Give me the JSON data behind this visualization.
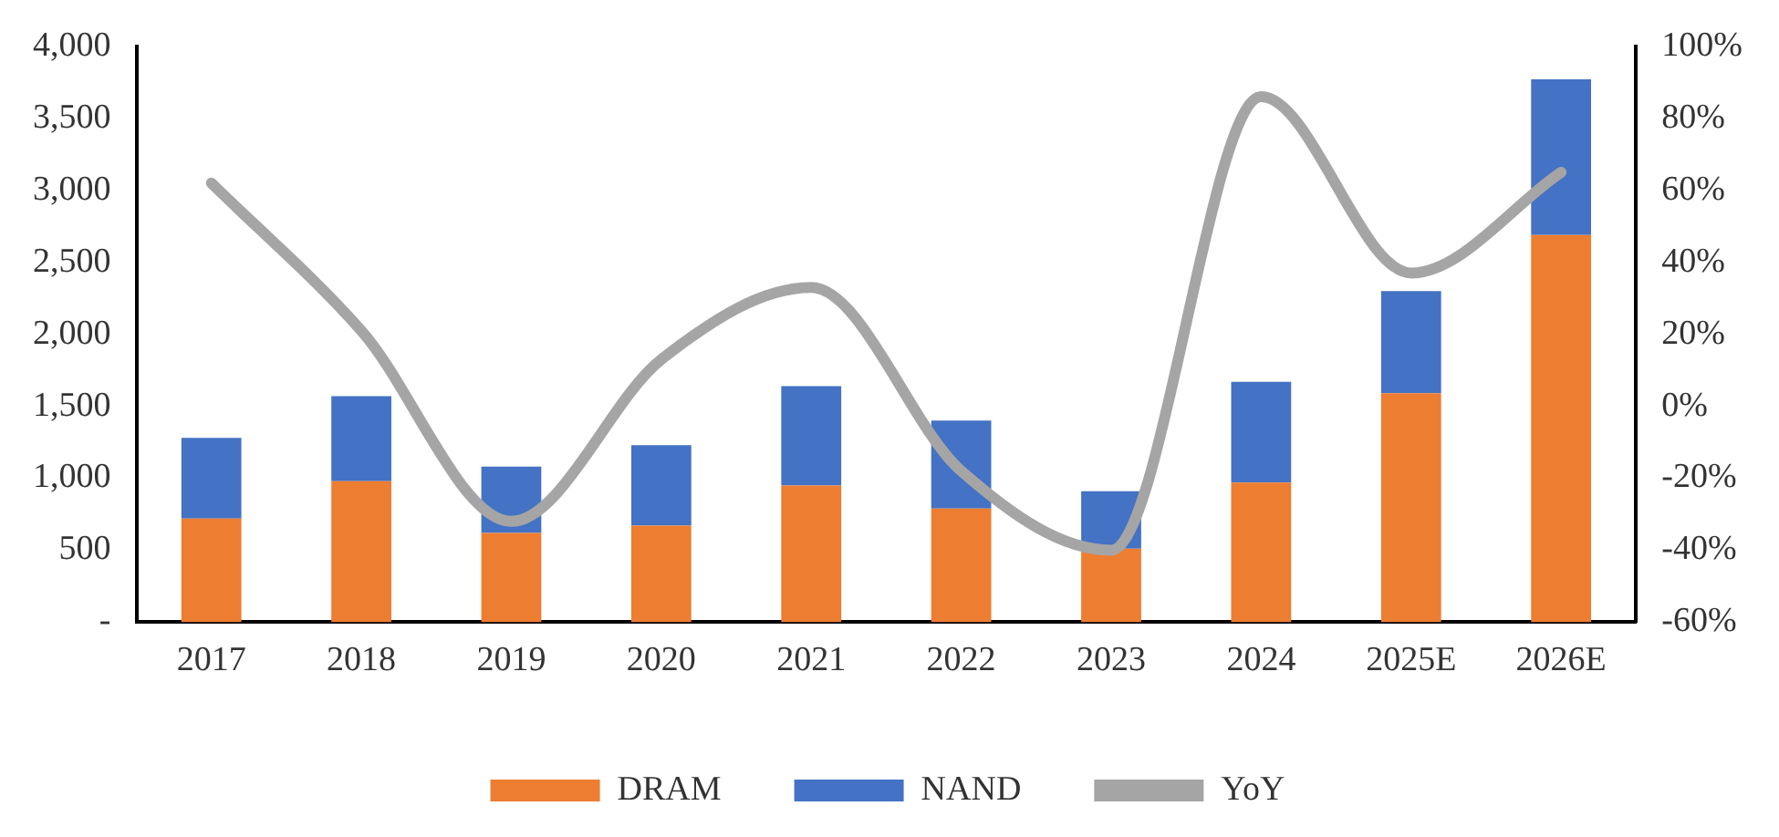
{
  "chart_data": {
    "type": "bar",
    "stacked": true,
    "categories": [
      "2017",
      "2018",
      "2019",
      "2020",
      "2021",
      "2022",
      "2023",
      "2024",
      "2025E",
      "2026E"
    ],
    "series": [
      {
        "name": "DRAM",
        "color": "#ed7d31",
        "values": [
          720,
          980,
          620,
          670,
          950,
          790,
          510,
          970,
          1590,
          2690
        ]
      },
      {
        "name": "NAND",
        "color": "#4472c4",
        "values": [
          560,
          590,
          460,
          560,
          690,
          610,
          400,
          700,
          710,
          1080
        ]
      },
      {
        "name": "YoY",
        "type": "line",
        "axis": "y2",
        "color": "#a5a5a5",
        "marker": "none",
        "values": [
          62,
          21,
          -32,
          13,
          33,
          -18,
          -40,
          86,
          37,
          65
        ]
      }
    ],
    "ylim": [
      0,
      4000
    ],
    "yticks": [
      {
        "value": 0,
        "label": "-"
      },
      {
        "value": 500,
        "label": "500"
      },
      {
        "value": 1000,
        "label": "1,000"
      },
      {
        "value": 1500,
        "label": "1,500"
      },
      {
        "value": 2000,
        "label": "2,000"
      },
      {
        "value": 2500,
        "label": "2,500"
      },
      {
        "value": 3000,
        "label": "3,000"
      },
      {
        "value": 3500,
        "label": "3,500"
      },
      {
        "value": 4000,
        "label": "4,000"
      }
    ],
    "y2lim": [
      -60,
      100
    ],
    "y2ticks": [
      {
        "value": -60,
        "label": "-60%"
      },
      {
        "value": -40,
        "label": "-40%"
      },
      {
        "value": -20,
        "label": "-20%"
      },
      {
        "value": 0,
        "label": "0%"
      },
      {
        "value": 20,
        "label": "20%"
      },
      {
        "value": 40,
        "label": "40%"
      },
      {
        "value": 60,
        "label": "60%"
      },
      {
        "value": 80,
        "label": "80%"
      },
      {
        "value": 100,
        "label": "100%"
      }
    ],
    "grid": false,
    "legend": "bottom"
  }
}
